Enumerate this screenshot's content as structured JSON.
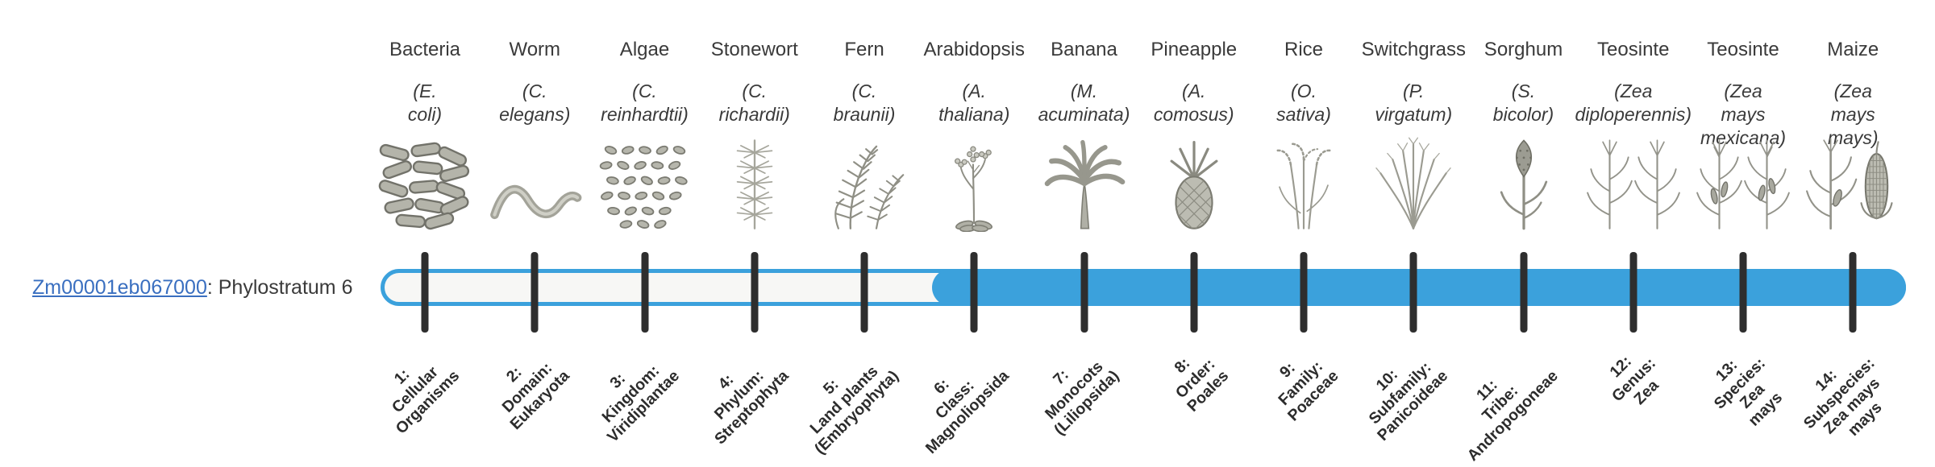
{
  "chart_data": {
    "type": "bar",
    "title": "Zm00001eb067000: Phylostratum 6",
    "gene": "Zm00001eb067000",
    "assigned_phylostratum": 6,
    "categories": [
      "1: Cellular Organisms",
      "2: Domain: Eukaryota",
      "3: Kingdom: Viridiplantae",
      "4: Phylum: Streptophyta",
      "5: Land plants (Embryophyta)",
      "6: Class: Magnoliopsida",
      "7: Monocots (Liliopsida)",
      "8: Order: Poales",
      "9: Family: Poaceae",
      "10: Subfamily: Panicoideae",
      "11: Tribe: Andropogoneae",
      "12: Genus: Zea",
      "13: Species: Zea mays",
      "14: Subspecies: Zea mays mays"
    ],
    "representative_organisms": [
      "Bacteria (E. coli)",
      "Worm (C. elegans)",
      "Algae (C. reinhardtii)",
      "Stonewort (C. richardii)",
      "Fern (C. braunii)",
      "Arabidopsis (A. thaliana)",
      "Banana (M. acuminata)",
      "Pineapple (A. comosus)",
      "Rice (O. sativa)",
      "Switchgrass (P. virgatum)",
      "Sorghum (S. bicolor)",
      "Teosinte (Zea diploperennis)",
      "Teosinte (Zea mays mexicana)",
      "Maize (Zea mays mays)"
    ],
    "series": [
      {
        "name": "phylostratum-fill",
        "values": [
          0,
          0,
          0,
          0,
          0,
          1,
          1,
          1,
          1,
          1,
          1,
          1,
          1,
          1
        ]
      }
    ],
    "legend": "none",
    "grid": false
  },
  "gene": {
    "link_text": "Zm00001eb067000",
    "suffix": ": Phylostratum 6"
  },
  "colors": {
    "bar_blue": "#3ba1dc",
    "bar_track": "#f7f7f5",
    "tick": "#2e2e2e",
    "text": "#3a3a3a",
    "link": "#3a6fc0"
  },
  "organisms": [
    {
      "name": "Bacteria",
      "sci": "(E. coli)",
      "icon": "bacteria-icon",
      "stratum_label": "1:\nCellular\nOrganisms"
    },
    {
      "name": "Worm",
      "sci": "(C. elegans)",
      "icon": "worm-icon",
      "stratum_label": "2:\nDomain:\nEukaryota"
    },
    {
      "name": "Algae",
      "sci": "(C.\nreinhardtii)",
      "icon": "algae-icon",
      "stratum_label": "3:\nKingdom:\nViridiplantae"
    },
    {
      "name": "Stonewort",
      "sci": "(C. richardii)",
      "icon": "stonewort-icon",
      "stratum_label": "4:\nPhylum:\nStreptophyta"
    },
    {
      "name": "Fern",
      "sci": "(C. braunii)",
      "icon": "fern-icon",
      "stratum_label": "5:\nLand plants\n(Embryophyta)"
    },
    {
      "name": "Arabidopsis",
      "sci": "(A. thaliana)",
      "icon": "arabidopsis-icon",
      "stratum_label": "6:\nClass:\nMagnoliopsida"
    },
    {
      "name": "Banana",
      "sci": "(M.\nacuminata)",
      "icon": "banana-icon",
      "stratum_label": "7:\nMonocots\n(Liliopsida)"
    },
    {
      "name": "Pineapple",
      "sci": "(A.\ncomosus)",
      "icon": "pineapple-icon",
      "stratum_label": "8:\nOrder:\nPoales"
    },
    {
      "name": "Rice",
      "sci": "(O. sativa)",
      "icon": "rice-icon",
      "stratum_label": "9:\nFamily:\nPoaceae"
    },
    {
      "name": "Switchgrass",
      "sci": "(P.\nvirgatum)",
      "icon": "switchgrass-icon",
      "stratum_label": "10:\nSubfamily:\nPanicoideae"
    },
    {
      "name": "Sorghum",
      "sci": "(S. bicolor)",
      "icon": "sorghum-icon",
      "stratum_label": "11:\nTribe:\nAndropogoneae"
    },
    {
      "name": "Teosinte",
      "sci": "(Zea\ndiploperennis)",
      "icon": "teosinte-diploperennis-icon",
      "stratum_label": "12:\nGenus:\nZea"
    },
    {
      "name": "Teosinte",
      "sci": "(Zea mays\nmexicana)",
      "icon": "teosinte-mexicana-icon",
      "stratum_label": "13:\nSpecies:\nZea\nmays"
    },
    {
      "name": "Maize",
      "sci": "(Zea mays\nmays)",
      "icon": "maize-icon",
      "stratum_label": "14:\nSubspecies:\nZea mays\nmays"
    }
  ]
}
